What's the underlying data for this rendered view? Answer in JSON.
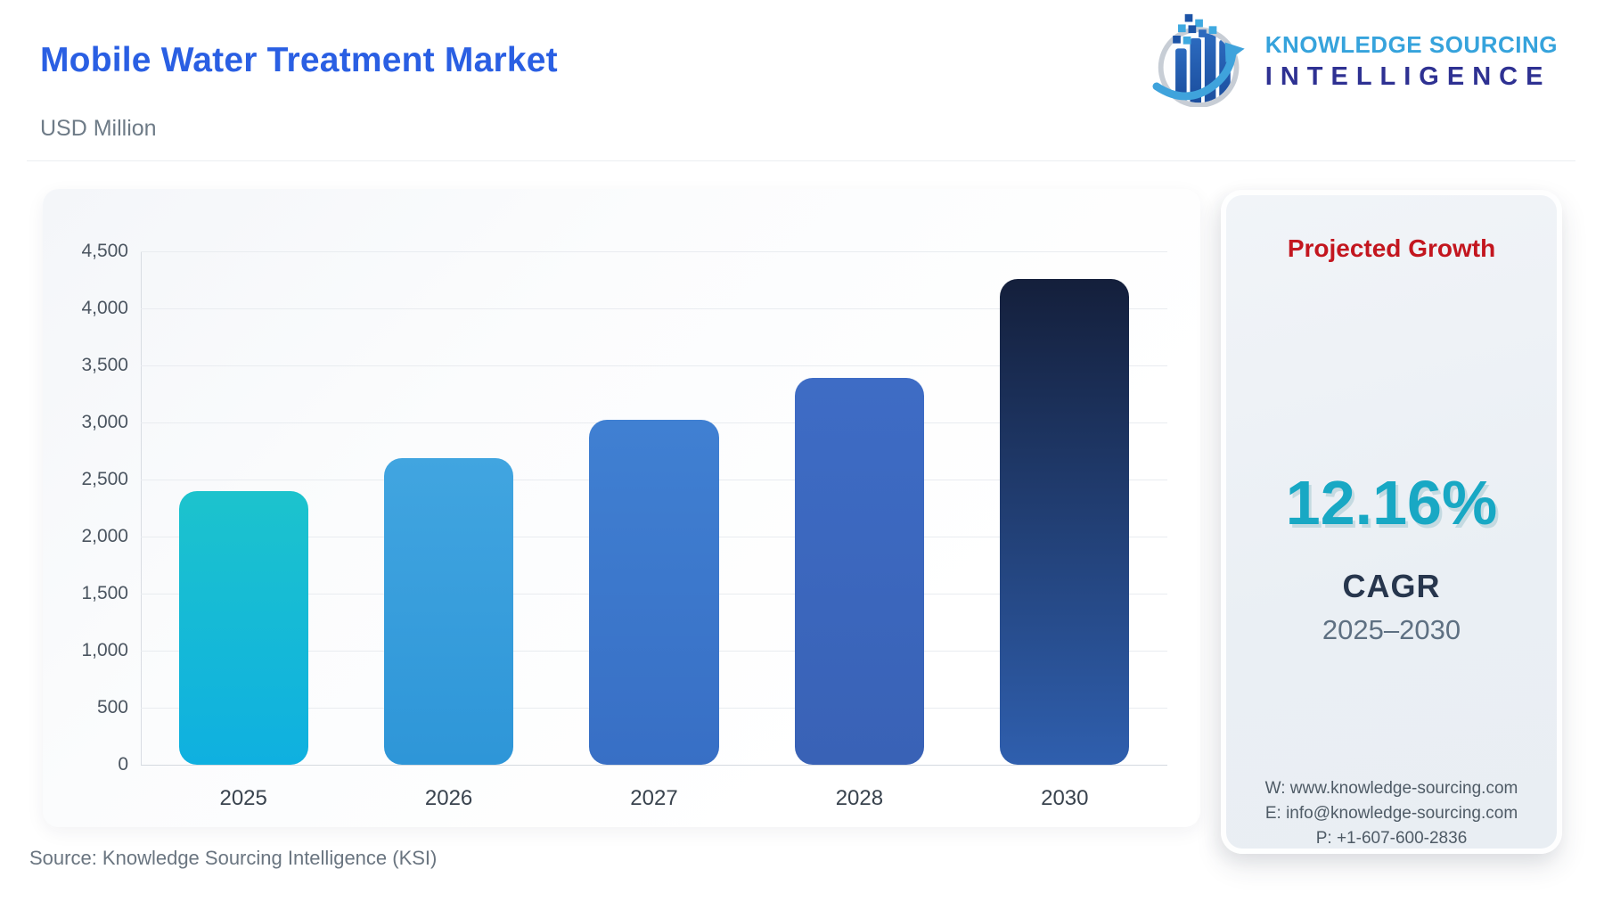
{
  "header": {
    "title": "Mobile Water Treatment Market",
    "subtitle": "USD Million",
    "title_color": "#2A5FE3"
  },
  "logo": {
    "line1": "KNOWLEDGE SOURCING",
    "line2": "INTELLIGENCE",
    "line1_color": "#36A3DC",
    "line2_color": "#2E3192",
    "icon": "ksi-globe-bars-arrow"
  },
  "chart_data": {
    "type": "bar",
    "title": "Mobile Water Treatment Market",
    "ylabel": "USD Million",
    "xlabel": "",
    "categories": [
      "2025",
      "2026",
      "2027",
      "2028",
      "2030"
    ],
    "values": [
      2400,
      2690,
      3020,
      3390,
      4260
    ],
    "ylim": [
      0,
      4500
    ],
    "ytick_step": 500,
    "grid": true,
    "legend": false,
    "bar_colors": [
      [
        "#1CC3CD",
        "#0FB0E0"
      ],
      [
        "#41A5E0",
        "#2E96D8"
      ],
      [
        "#4080D2",
        "#386FC5"
      ],
      [
        "#3E6CC5",
        "#3962B6"
      ],
      [
        "#141F3B",
        "#2F5FAE"
      ]
    ]
  },
  "side_panel": {
    "heading": "Projected Growth",
    "heading_color": "#C3161F",
    "cagr_value": "12.16%",
    "cagr_value_color": "#18A8C4",
    "cagr_label": "CAGR",
    "period": "2025–2030",
    "contact": {
      "website": "W: www.knowledge-sourcing.com",
      "email": "E: info@knowledge-sourcing.com",
      "phone": "P: +1-607-600-2836"
    }
  },
  "footer": {
    "source": "Source: Knowledge Sourcing Intelligence (KSI)"
  }
}
